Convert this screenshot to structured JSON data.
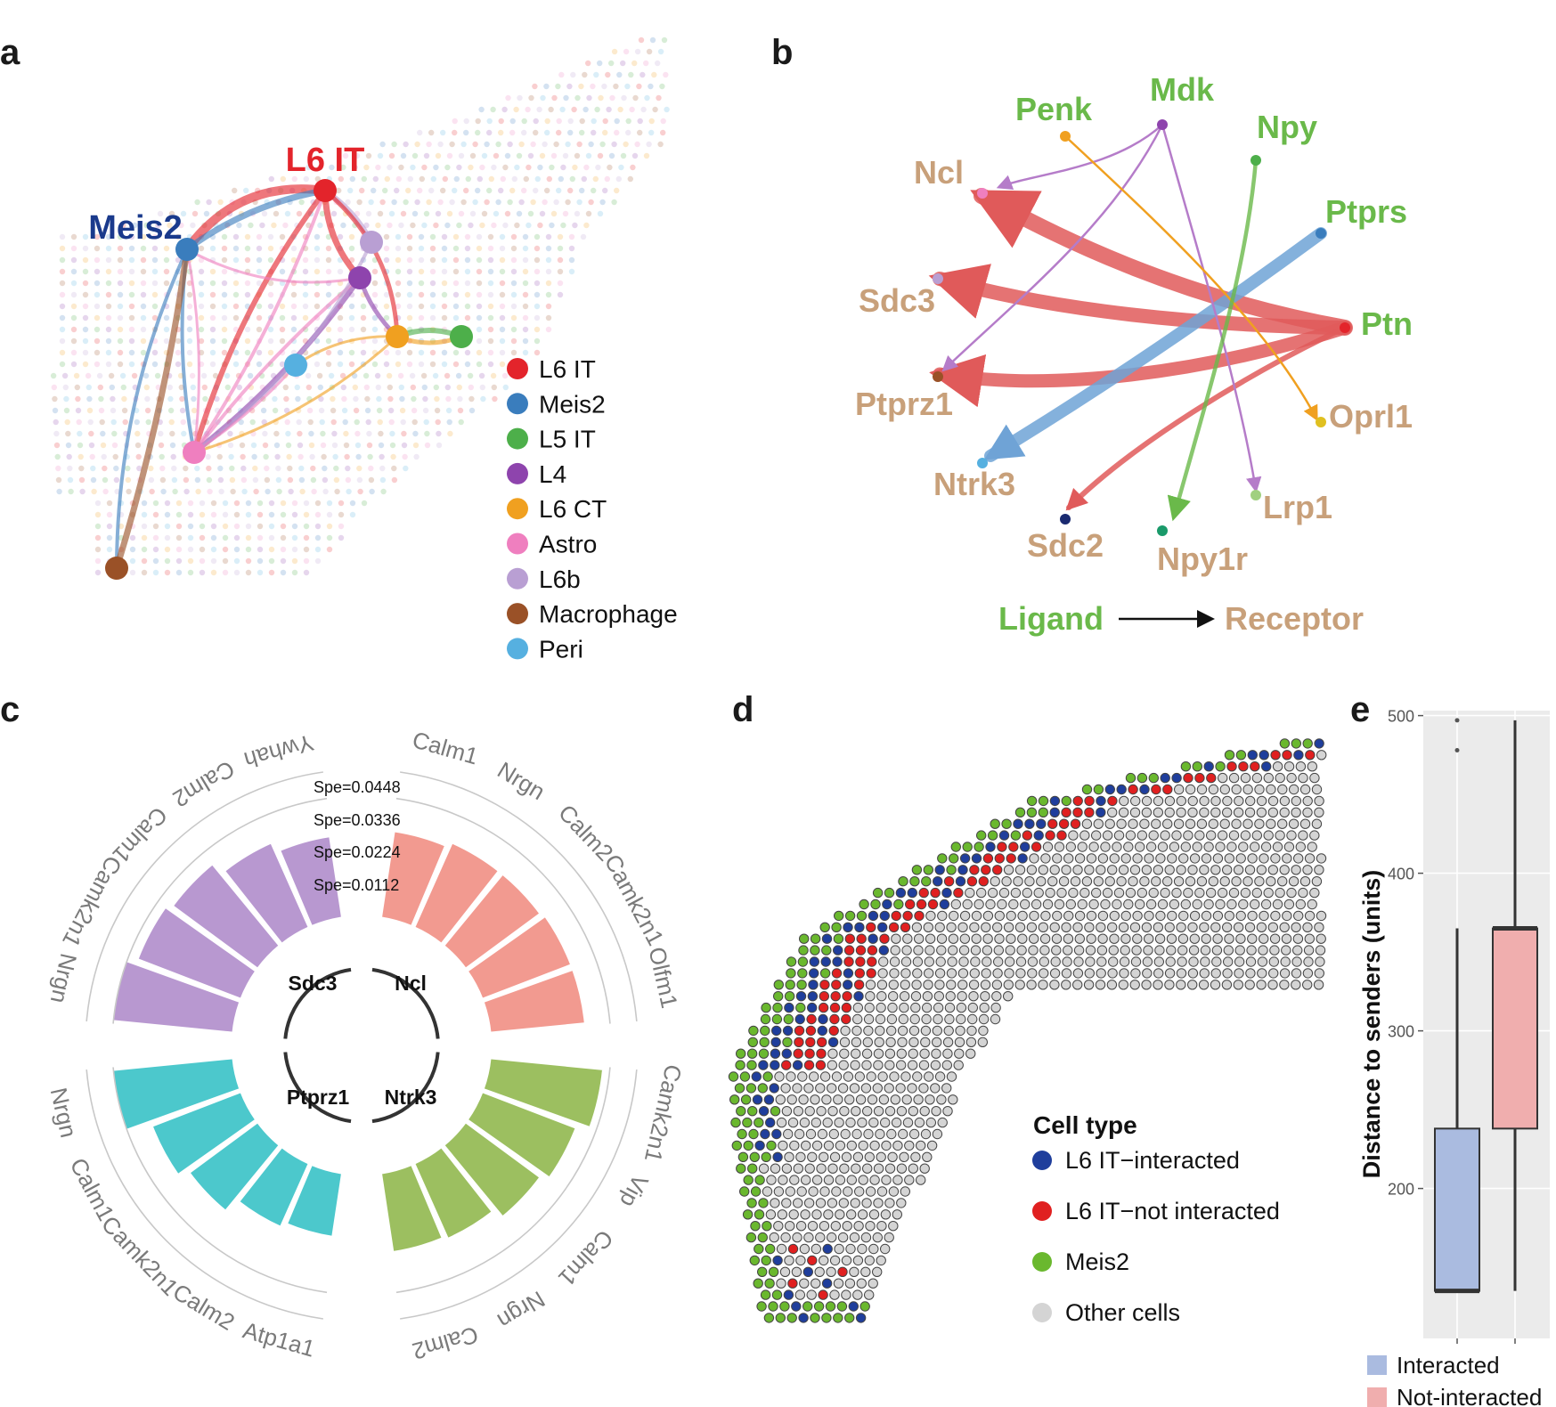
{
  "panels": {
    "a": "a",
    "b": "b",
    "c": "c",
    "d": "d",
    "e": "e"
  },
  "colors": {
    "l6it": "#e3242b",
    "meis2": "#3a7dbd",
    "l5it": "#4daf4a",
    "l4": "#8e44ad",
    "l6ct": "#f0a020",
    "astro": "#ef7fbf",
    "l6b": "#b99fd3",
    "macrophage": "#9a5127",
    "peri": "#56b0e0",
    "ligand": "#6ab94a",
    "receptor": "#c8a07a",
    "edge_red": "#e05a5a",
    "edge_blue": "#6fa3d6",
    "edge_purple": "#b57cc9",
    "bar_sdc3": "#b898d0",
    "bar_ncl": "#f29a90",
    "bar_ptprz1": "#4cc8cc",
    "bar_ntrk3": "#9cbf60",
    "d_interacted": "#1f3e9c",
    "d_not": "#e02020",
    "d_meis2": "#6ab82e",
    "d_other": "#d4d4d4",
    "box_interacted": "#aabbe0",
    "box_not": "#f0aeae"
  },
  "panel_a": {
    "label_l6it": "L6 IT",
    "label_meis2": "Meis2",
    "legend": [
      {
        "name": "L6 IT",
        "color_key": "l6it"
      },
      {
        "name": "Meis2",
        "color_key": "meis2"
      },
      {
        "name": "L5 IT",
        "color_key": "l5it"
      },
      {
        "name": "L4",
        "color_key": "l4"
      },
      {
        "name": "L6 CT",
        "color_key": "l6ct"
      },
      {
        "name": "Astro",
        "color_key": "astro"
      },
      {
        "name": "L6b",
        "color_key": "l6b"
      },
      {
        "name": "Macrophage",
        "color_key": "macrophage"
      },
      {
        "name": "Peri",
        "color_key": "peri"
      }
    ]
  },
  "panel_b": {
    "ligands": [
      "Penk",
      "Mdk",
      "Npy",
      "Ptprs",
      "Ptn"
    ],
    "receptors": [
      "Ncl",
      "Sdc3",
      "Ptprz1",
      "Ntrk3",
      "Sdc2",
      "Npy1r",
      "Lrp1",
      "Oprl1"
    ],
    "legend_ligand": "Ligand",
    "legend_receptor": "Receptor"
  },
  "panel_c": {
    "spe_ticks": [
      "Spe=0.0448",
      "Spe=0.0336",
      "Spe=0.0224",
      "Spe=0.0112"
    ],
    "groups": [
      {
        "receptor": "Sdc3",
        "genes": [
          "Nrgn",
          "Camk2n1",
          "Calm1",
          "Calm2",
          "Ywhah"
        ]
      },
      {
        "receptor": "Ncl",
        "genes": [
          "Calm1",
          "Nrgn",
          "Calm2",
          "Camk2n1",
          "Olfm1"
        ]
      },
      {
        "receptor": "Ptprz1",
        "genes": [
          "Atp1a1",
          "Calm2",
          "Camk2n1",
          "Calm1",
          "Nrgn"
        ]
      },
      {
        "receptor": "Ntrk3",
        "genes": [
          "Camk2n1",
          "Vip",
          "Calm1",
          "Nrgn",
          "Calm2"
        ]
      }
    ]
  },
  "panel_d": {
    "legend_title": "Cell type",
    "legend": [
      {
        "name": "L6 IT−interacted",
        "color_key": "d_interacted"
      },
      {
        "name": "L6 IT−not interacted",
        "color_key": "d_not"
      },
      {
        "name": "Meis2",
        "color_key": "d_meis2"
      },
      {
        "name": "Other cells",
        "color_key": "d_other"
      }
    ]
  },
  "chart_data": {
    "type": "box",
    "title": "",
    "ylabel": "Distance to senders (units)",
    "ylim": [
      120,
      510
    ],
    "yticks": [
      200,
      300,
      400,
      500
    ],
    "ytick_labels": [
      "200",
      "300",
      "400",
      "500"
    ],
    "categories": [
      "Interacted",
      "Not-interacted"
    ],
    "series": [
      {
        "name": "Interacted",
        "min": 135,
        "q1": 135,
        "median": 135,
        "q3": 238,
        "max": 365,
        "outliers": [
          478,
          497
        ]
      },
      {
        "name": "Not-interacted",
        "min": 135,
        "q1": 238,
        "median": 365,
        "q3": 365,
        "max": 497,
        "outliers": []
      }
    ],
    "legend": [
      "Interacted",
      "Not-interacted"
    ]
  }
}
